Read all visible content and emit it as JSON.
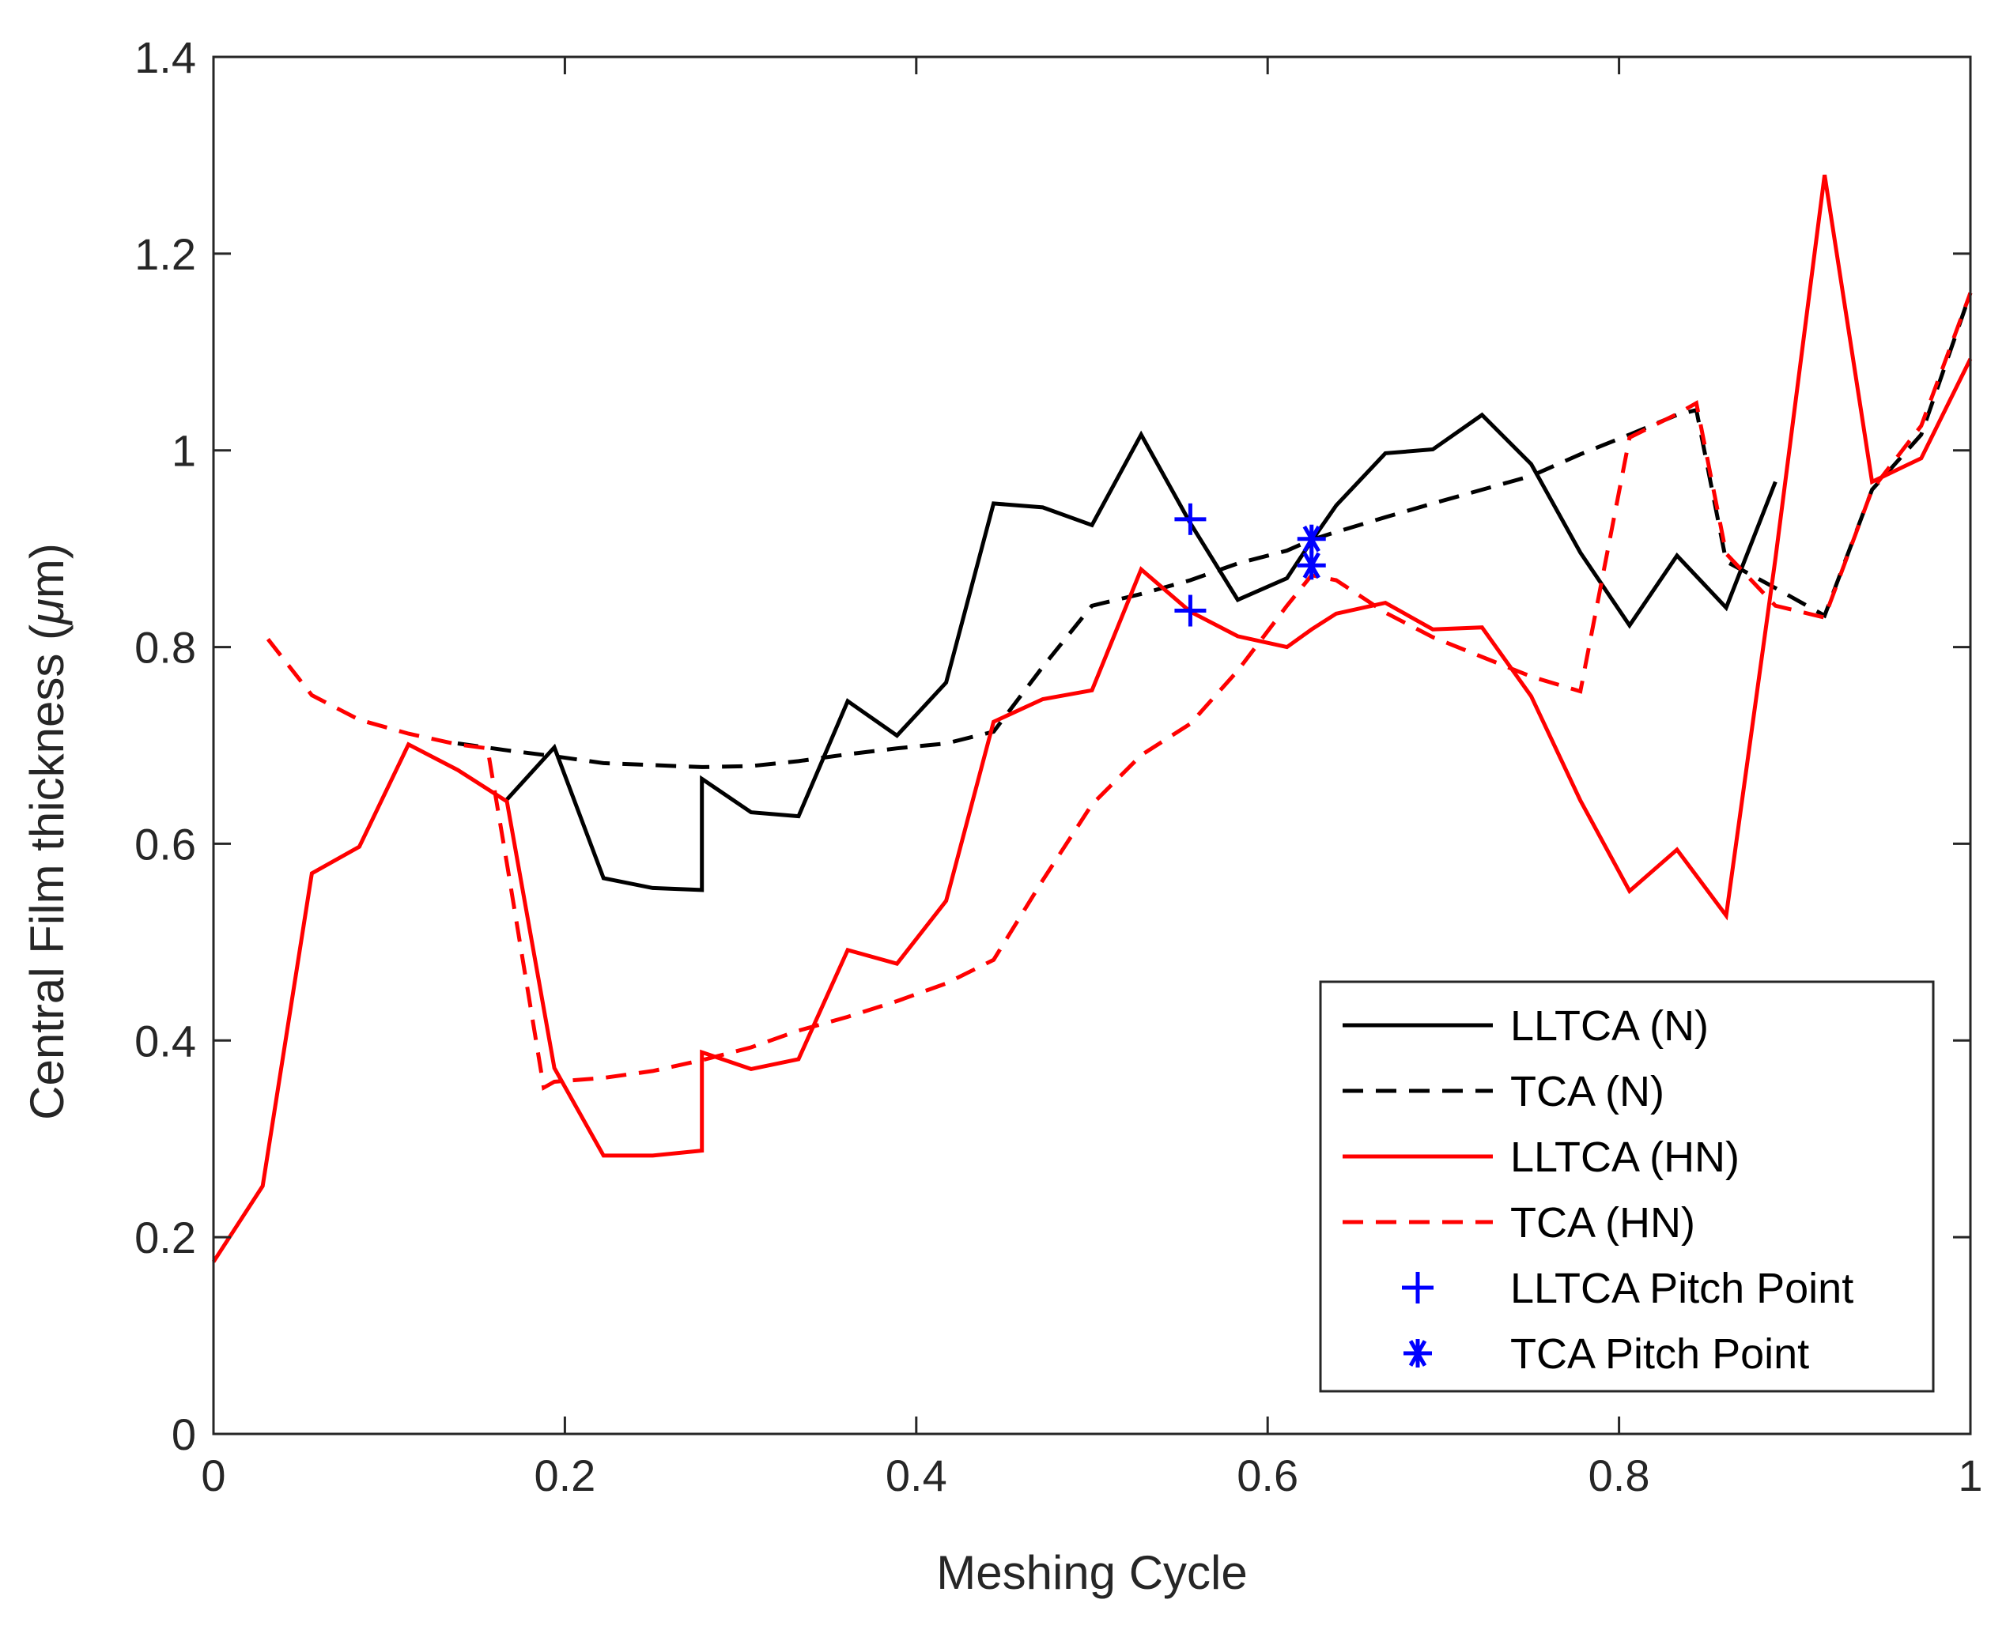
{
  "chart_data": {
    "type": "line",
    "title": "",
    "xlabel": "Meshing Cycle",
    "ylabel": "Central Film thickness (",
    "ylabel_symbol": "μ",
    "ylabel_tail": "m)",
    "xlim": [
      0,
      1
    ],
    "ylim": [
      0,
      1.4
    ],
    "xticks": [
      0,
      0.2,
      0.4,
      0.6,
      0.8,
      1
    ],
    "xtick_labels": [
      "0",
      "0.2",
      "0.4",
      "0.6",
      "0.8",
      "1"
    ],
    "yticks": [
      0,
      0.2,
      0.4,
      0.6,
      0.8,
      1,
      1.2,
      1.4
    ],
    "ytick_labels": [
      "0",
      "0.2",
      "0.4",
      "0.6",
      "0.8",
      "1",
      "1.2",
      "1.4"
    ],
    "grid": false,
    "legend_position": "bottom-right",
    "series": [
      {
        "name": "LLTCA (N)",
        "color": "#000000",
        "style": "solid",
        "x": [
          0.167,
          0.194,
          0.222,
          0.25,
          0.278,
          0.278,
          0.306,
          0.333,
          0.361,
          0.389,
          0.417,
          0.444,
          0.472,
          0.5,
          0.528,
          0.556,
          0.583,
          0.611,
          0.625,
          0.639,
          0.667,
          0.694,
          0.722,
          0.75,
          0.778,
          0.806,
          0.833,
          0.861,
          0.889
        ],
        "y": [
          0.645,
          0.698,
          0.565,
          0.555,
          0.553,
          0.666,
          0.632,
          0.628,
          0.745,
          0.71,
          0.764,
          0.946,
          0.942,
          0.924,
          1.016,
          0.926,
          0.848,
          0.87,
          0.908,
          0.944,
          0.997,
          1.001,
          1.036,
          0.986,
          0.896,
          0.822,
          0.893,
          0.84,
          0.968
        ]
      },
      {
        "name": "TCA (N)",
        "color": "#000000",
        "style": "dashed",
        "x": [
          0.139,
          0.167,
          0.194,
          0.222,
          0.25,
          0.278,
          0.306,
          0.333,
          0.361,
          0.389,
          0.417,
          0.444,
          0.472,
          0.5,
          0.528,
          0.556,
          0.583,
          0.611,
          0.625,
          0.639,
          0.667,
          0.694,
          0.722,
          0.75,
          0.778,
          0.806,
          0.833,
          0.844,
          0.861,
          0.889,
          0.917,
          0.944,
          0.972,
          1.0
        ],
        "y": [
          0.702,
          0.695,
          0.689,
          0.682,
          0.68,
          0.678,
          0.679,
          0.684,
          0.691,
          0.697,
          0.702,
          0.714,
          0.78,
          0.842,
          0.854,
          0.868,
          0.885,
          0.898,
          0.909,
          0.917,
          0.932,
          0.946,
          0.96,
          0.974,
          0.996,
          1.016,
          1.036,
          1.041,
          0.887,
          0.86,
          0.832,
          0.96,
          1.016,
          1.16
        ]
      },
      {
        "name": "LLTCA (HN)",
        "color": "#ff0000",
        "style": "solid",
        "x": [
          0,
          0.028,
          0.056,
          0.083,
          0.111,
          0.139,
          0.167,
          0.194,
          0.222,
          0.25,
          0.278,
          0.278,
          0.306,
          0.333,
          0.361,
          0.389,
          0.417,
          0.444,
          0.472,
          0.5,
          0.528,
          0.556,
          0.583,
          0.611,
          0.625,
          0.639,
          0.667,
          0.694,
          0.722,
          0.75,
          0.778,
          0.806,
          0.833,
          0.861,
          0.889,
          0.917,
          0.944,
          0.972,
          1.0
        ],
        "y": [
          0.175,
          0.252,
          0.57,
          0.597,
          0.701,
          0.675,
          0.643,
          0.372,
          0.283,
          0.283,
          0.288,
          0.388,
          0.371,
          0.381,
          0.492,
          0.478,
          0.542,
          0.724,
          0.747,
          0.756,
          0.879,
          0.836,
          0.811,
          0.8,
          0.818,
          0.834,
          0.845,
          0.818,
          0.82,
          0.75,
          0.644,
          0.552,
          0.594,
          0.527,
          0.89,
          1.28,
          0.968,
          0.992,
          1.093
        ]
      },
      {
        "name": "TCA (HN)",
        "color": "#ff0000",
        "style": "dashed",
        "x": [
          0.031,
          0.056,
          0.083,
          0.111,
          0.139,
          0.156,
          0.167,
          0.188,
          0.194,
          0.222,
          0.25,
          0.278,
          0.306,
          0.333,
          0.361,
          0.389,
          0.417,
          0.444,
          0.472,
          0.5,
          0.528,
          0.556,
          0.583,
          0.611,
          0.625,
          0.639,
          0.667,
          0.694,
          0.722,
          0.75,
          0.778,
          0.806,
          0.833,
          0.844,
          0.861,
          0.889,
          0.917,
          0.944,
          0.972,
          1.0
        ],
        "y": [
          0.808,
          0.751,
          0.726,
          0.712,
          0.701,
          0.697,
          0.58,
          0.352,
          0.358,
          0.362,
          0.369,
          0.38,
          0.393,
          0.41,
          0.424,
          0.44,
          0.458,
          0.482,
          0.563,
          0.64,
          0.69,
          0.722,
          0.776,
          0.842,
          0.873,
          0.868,
          0.835,
          0.81,
          0.79,
          0.77,
          0.755,
          1.013,
          1.037,
          1.048,
          0.895,
          0.842,
          0.83,
          0.96,
          1.025,
          1.16
        ]
      }
    ],
    "markers": [
      {
        "name": "LLTCA Pitch Point",
        "symbol": "+",
        "color": "#0000ff",
        "points": [
          [
            0.556,
            0.93
          ],
          [
            0.556,
            0.837
          ]
        ]
      },
      {
        "name": "TCA Pitch Point",
        "symbol": "*",
        "color": "#0000ff",
        "points": [
          [
            0.625,
            0.91
          ],
          [
            0.625,
            0.883
          ]
        ]
      }
    ]
  }
}
